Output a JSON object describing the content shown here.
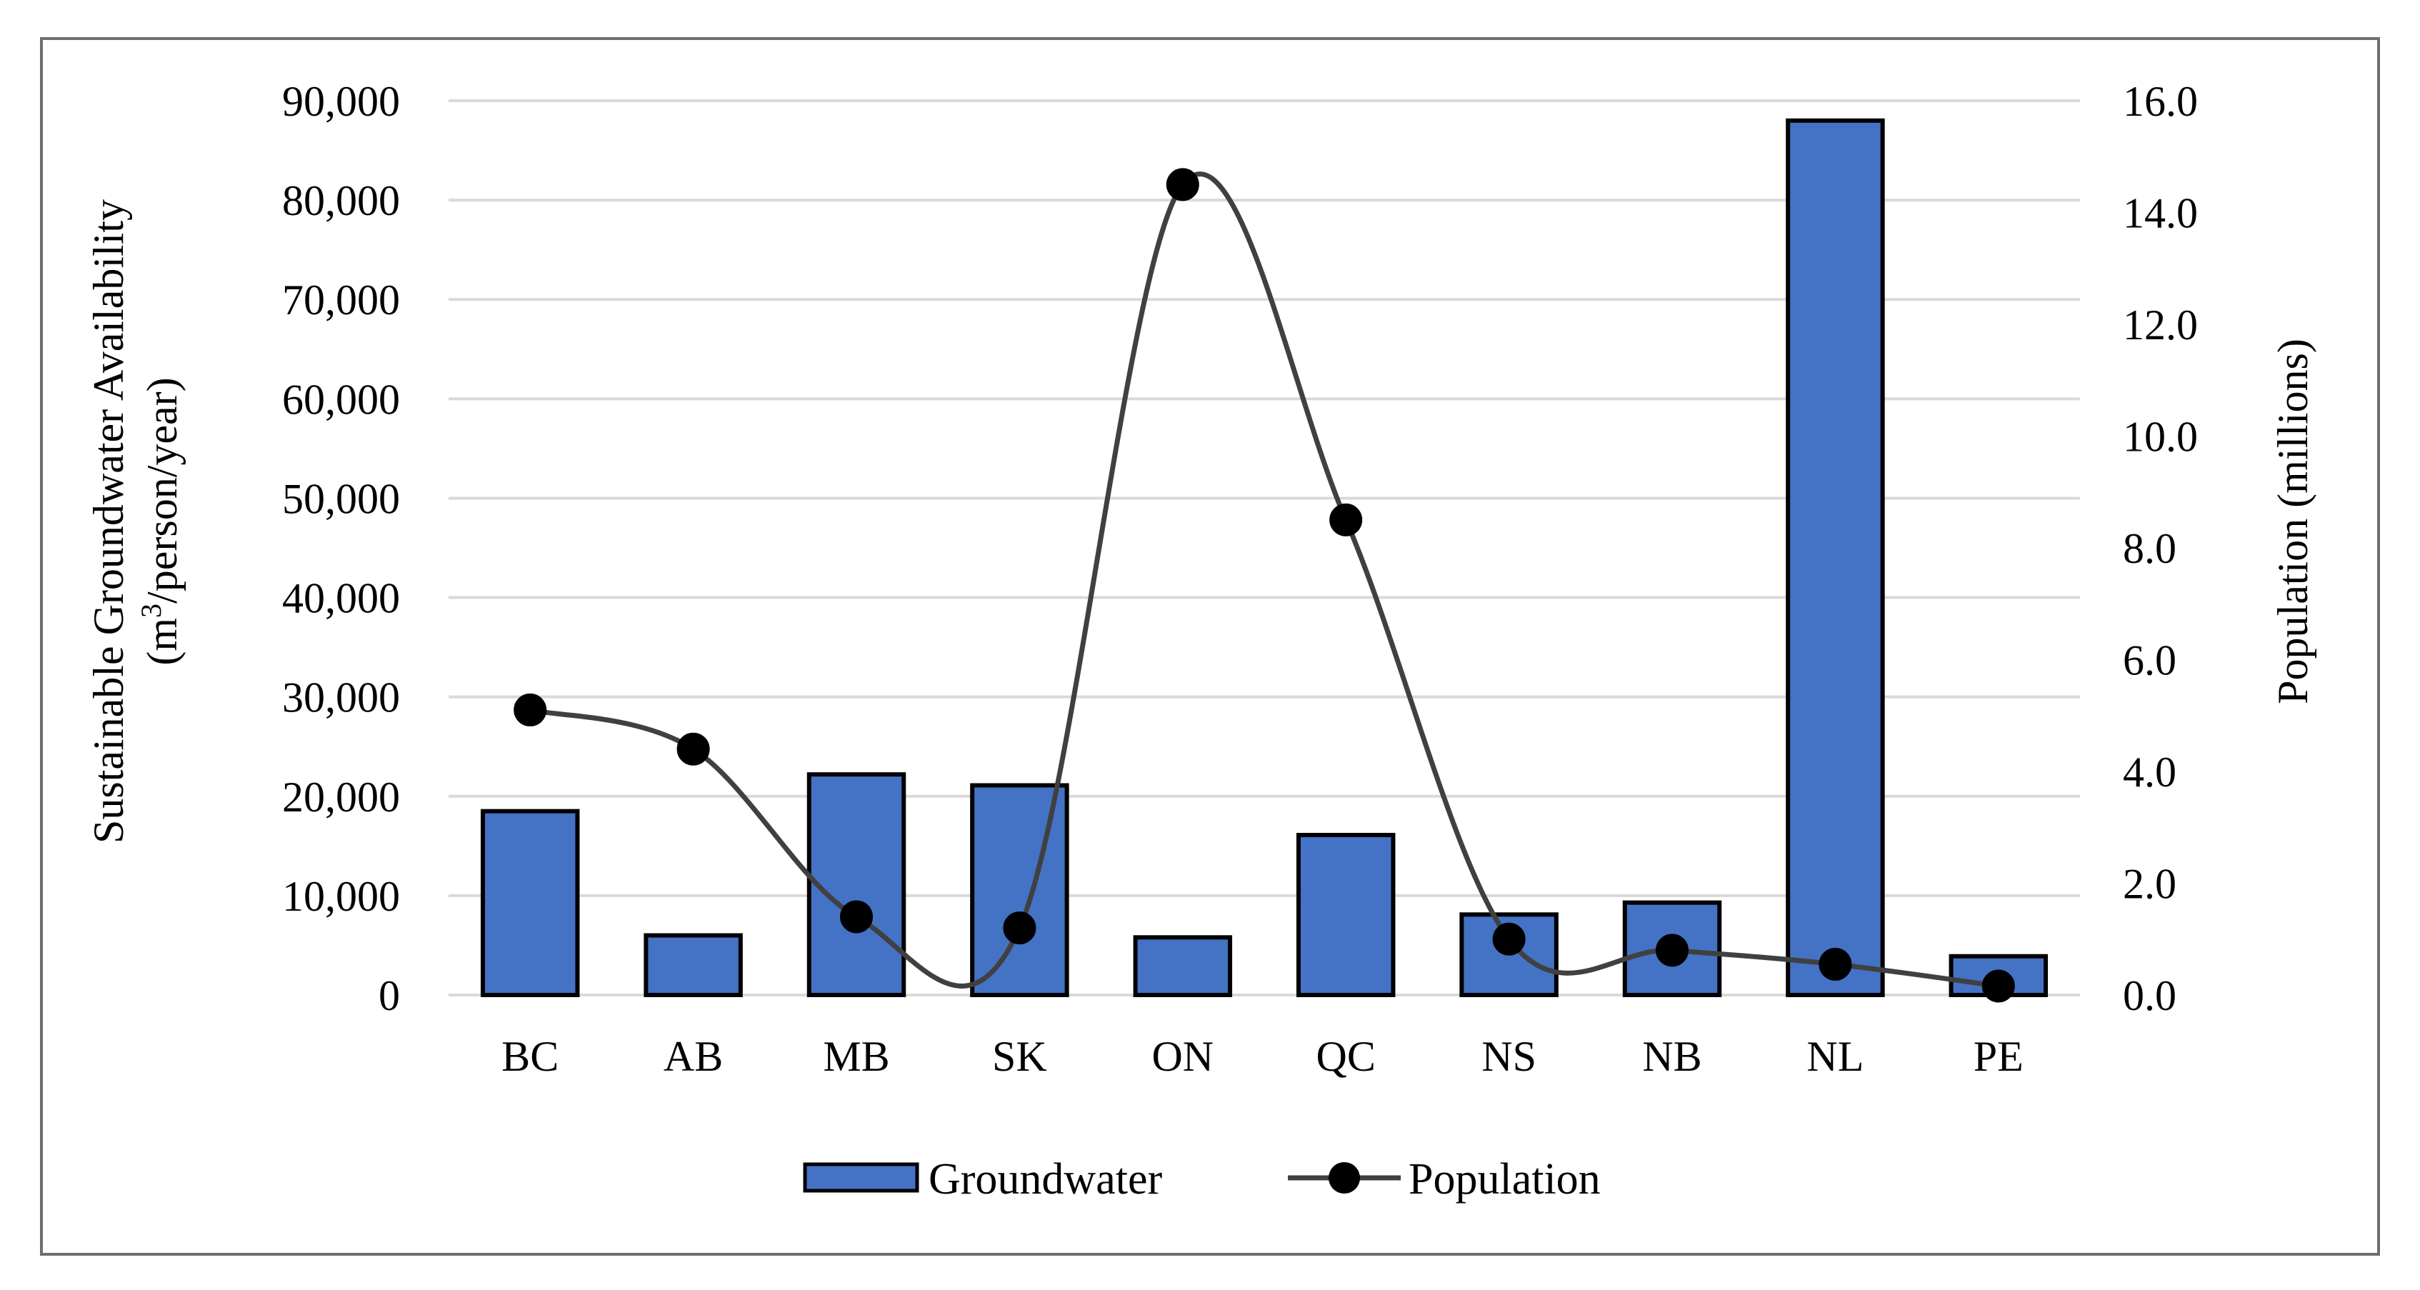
{
  "chart_data": {
    "type": "bar",
    "categories": [
      "BC",
      "AB",
      "MB",
      "SK",
      "ON",
      "QC",
      "NS",
      "NB",
      "NL",
      "PE"
    ],
    "series": [
      {
        "name": "Groundwater",
        "type": "bar",
        "axis": "left",
        "color": "#4472c4",
        "values": [
          18500,
          6000,
          22200,
          21100,
          5800,
          16100,
          8100,
          9300,
          88000,
          3900
        ]
      },
      {
        "name": "Population",
        "type": "line",
        "axis": "right",
        "color": "#404040",
        "marker_color": "#000000",
        "values": [
          5.1,
          4.4,
          1.4,
          1.2,
          14.5,
          8.5,
          1.0,
          0.8,
          0.55,
          0.16
        ]
      }
    ],
    "y_left": {
      "label_line1": "Sustainable Groundwater Availability",
      "label_line2_prefix": "(m",
      "label_line2_sup": "3",
      "label_line2_suffix": "/person/year)",
      "lim": [
        0,
        90000
      ],
      "ticks": [
        "0",
        "10,000",
        "20,000",
        "30,000",
        "40,000",
        "50,000",
        "60,000",
        "70,000",
        "80,000",
        "90,000"
      ]
    },
    "y_right": {
      "label": "Population (millions)",
      "lim": [
        0,
        16
      ],
      "ticks": [
        "0.0",
        "2.0",
        "4.0",
        "6.0",
        "8.0",
        "10.0",
        "12.0",
        "14.0",
        "16.0"
      ]
    },
    "grid": true,
    "legend": {
      "position": "bottom-center",
      "items": [
        "Groundwater",
        "Population"
      ]
    }
  }
}
